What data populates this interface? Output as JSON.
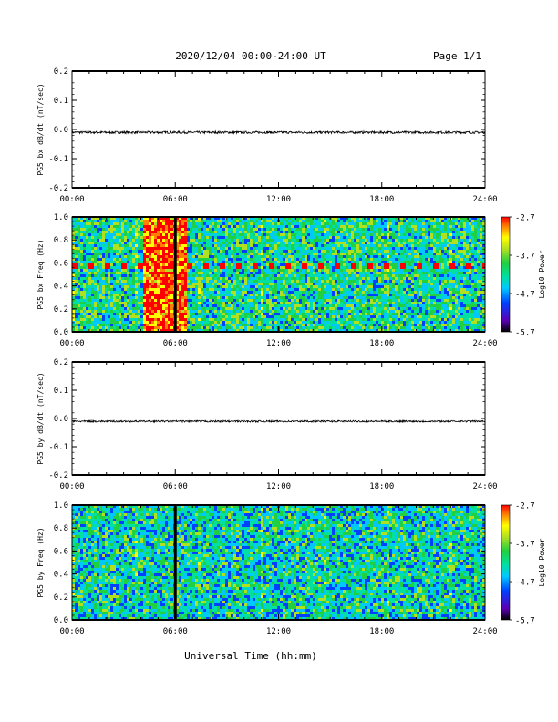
{
  "header": {
    "date_range": "2020/12/04  00:00-24:00 UT",
    "page": "Page 1/1"
  },
  "footer": {
    "xlabel": "Universal Time (hh:mm)"
  },
  "colors": {
    "colormap": [
      "#000000",
      "#5a00b4",
      "#0040ff",
      "#00c8ff",
      "#00e0a0",
      "#20d040",
      "#b0e020",
      "#ffff00",
      "#ff8000",
      "#ff0000"
    ]
  },
  "chart_data": [
    {
      "type": "line",
      "ylabel": "PG5 bx dB/dt (nT/sec)",
      "x_ticks": [
        "00:00",
        "06:00",
        "12:00",
        "18:00",
        "24:00"
      ],
      "xlim_hours": [
        0,
        24
      ],
      "ylim": [
        -0.2,
        0.2
      ],
      "y_ticks": [
        "0.2",
        "0.1",
        "0.0",
        "-0.1",
        "-0.2"
      ],
      "y_tick_values": [
        0.2,
        0.1,
        0.0,
        -0.1,
        -0.2
      ],
      "series": [
        {
          "baseline": -0.01,
          "noise_amplitude": 0.004
        }
      ]
    },
    {
      "type": "heatmap",
      "ylabel": "PG5 bx Freq (Hz)",
      "x_ticks": [
        "00:00",
        "06:00",
        "12:00",
        "18:00",
        "24:00"
      ],
      "xlim_hours": [
        0,
        24
      ],
      "ylim": [
        0.0,
        1.0
      ],
      "y_ticks": [
        "1.0",
        "0.8",
        "0.6",
        "0.4",
        "0.2",
        "0.0"
      ],
      "y_tick_values": [
        1.0,
        0.8,
        0.6,
        0.4,
        0.2,
        0.0
      ],
      "colorbar": {
        "label": "Log10 Power",
        "ticks": [
          "-2.7",
          "-3.7",
          "-4.7",
          "-5.7"
        ],
        "range": [
          -5.7,
          -2.7
        ]
      },
      "data_gap_hours": 6.0,
      "enhanced_band_hours": [
        4.1,
        6.7
      ],
      "enhanced_band_log_power": -3.0,
      "background_log_power": -4.3,
      "line_at_freq_hz": 0.57
    },
    {
      "type": "line",
      "ylabel": "PG5 by dB/dt (nT/sec)",
      "x_ticks": [
        "00:00",
        "06:00",
        "12:00",
        "18:00",
        "24:00"
      ],
      "xlim_hours": [
        0,
        24
      ],
      "ylim": [
        -0.2,
        0.2
      ],
      "y_ticks": [
        "0.2",
        "0.1",
        "0.0",
        "-0.1",
        "-0.2"
      ],
      "y_tick_values": [
        0.2,
        0.1,
        0.0,
        -0.1,
        -0.2
      ],
      "series": [
        {
          "baseline": -0.01,
          "noise_amplitude": 0.003
        }
      ]
    },
    {
      "type": "heatmap",
      "ylabel": "PG5 by Freq (Hz)",
      "x_ticks": [
        "00:00",
        "06:00",
        "12:00",
        "18:00",
        "24:00"
      ],
      "xlim_hours": [
        0,
        24
      ],
      "ylim": [
        0.0,
        1.0
      ],
      "y_ticks": [
        "1.0",
        "0.8",
        "0.6",
        "0.4",
        "0.2",
        "0.0"
      ],
      "y_tick_values": [
        1.0,
        0.8,
        0.6,
        0.4,
        0.2,
        0.0
      ],
      "colorbar": {
        "label": "Log10 Power",
        "ticks": [
          "-2.7",
          "-3.7",
          "-4.7",
          "-5.7"
        ],
        "range": [
          -5.7,
          -2.7
        ]
      },
      "data_gap_hours": 6.0,
      "background_log_power": -4.4
    }
  ]
}
